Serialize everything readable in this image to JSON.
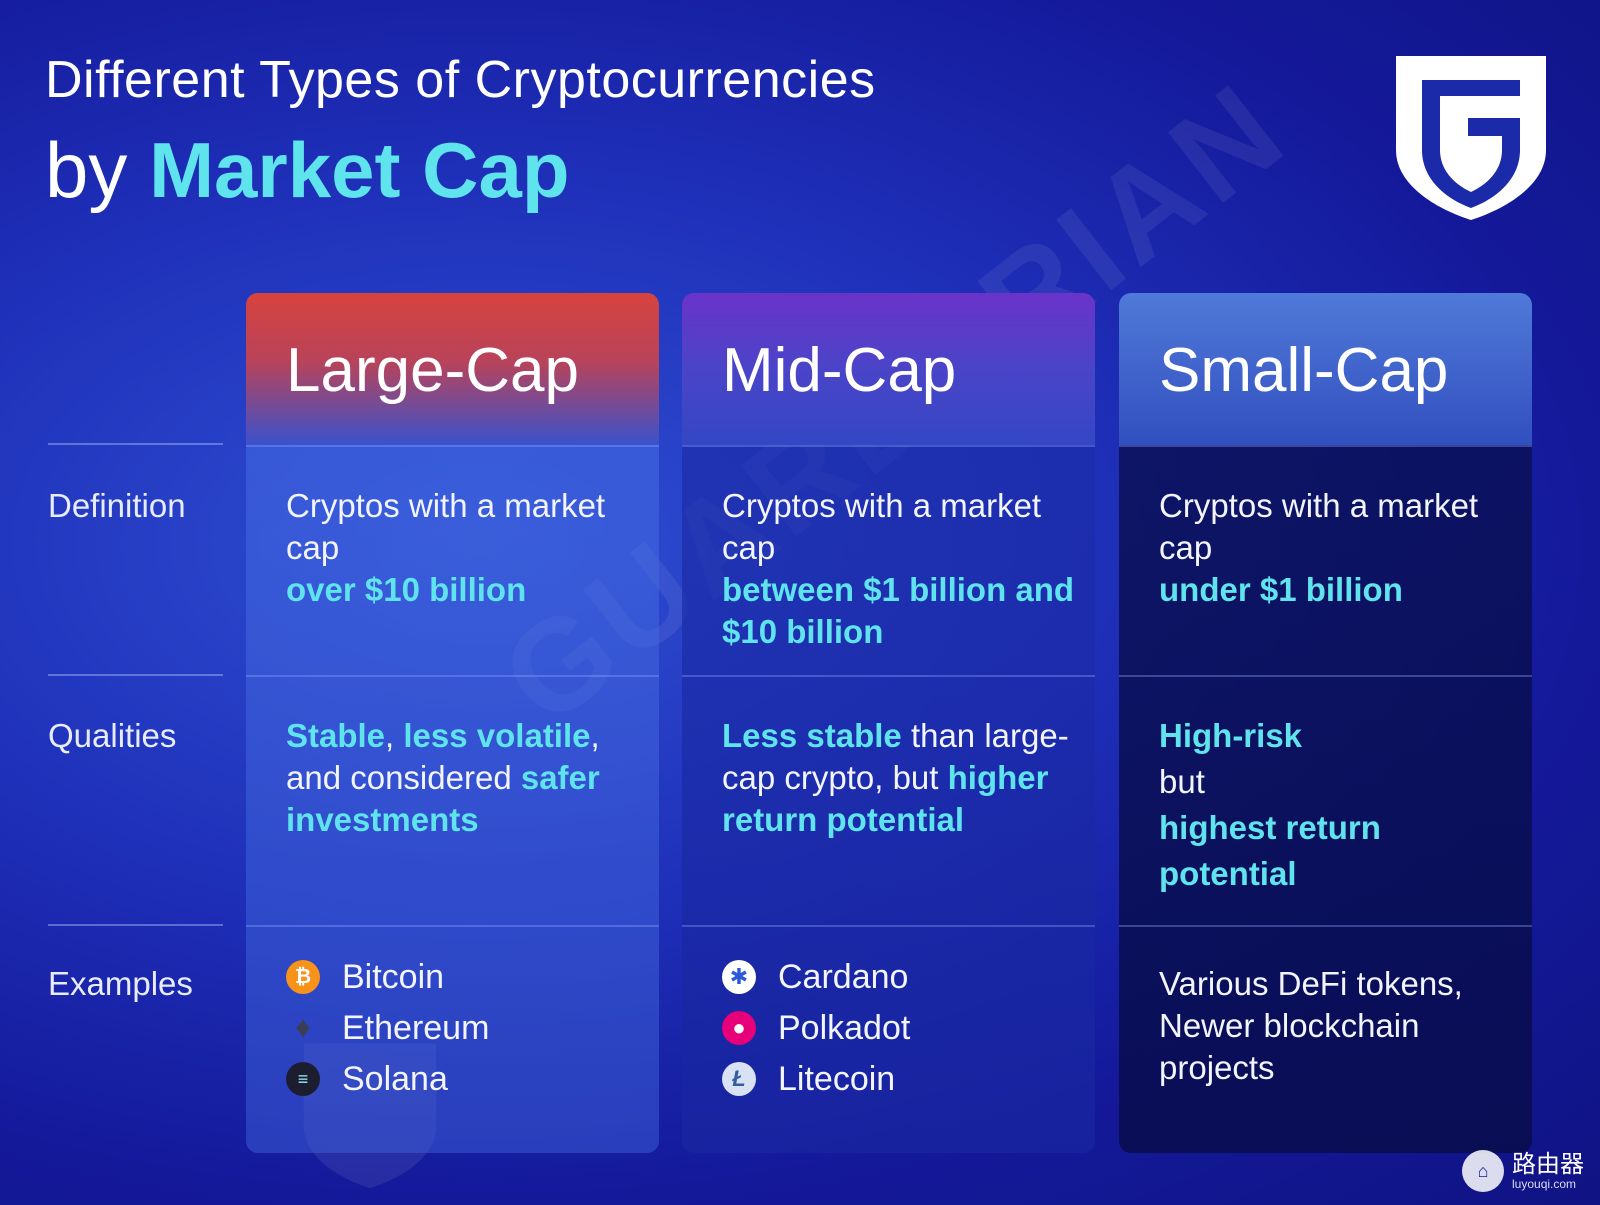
{
  "header": {
    "title_line1": "Different Types of Cryptocurrencies",
    "title_prefix": "by",
    "title_accent": "Market Cap"
  },
  "watermark": "GUARDARIAN",
  "row_labels": {
    "definition": "Definition",
    "qualities": "Qualities",
    "examples": "Examples"
  },
  "columns": {
    "large": {
      "title": "Large-Cap",
      "definition": {
        "text": "Cryptos with a market cap",
        "highlight": "over $10 billion"
      },
      "qualities": {
        "hl1": "Stable",
        "t1": ",",
        "hl2": "less volatile",
        "t2": ", and considered",
        "hl3": "safer investments"
      },
      "examples": [
        {
          "name": "Bitcoin",
          "icon": "bitcoin-icon"
        },
        {
          "name": "Ethereum",
          "icon": "ethereum-icon"
        },
        {
          "name": "Solana",
          "icon": "solana-icon"
        }
      ]
    },
    "mid": {
      "title": "Mid-Cap",
      "definition": {
        "text": "Cryptos with a market cap",
        "highlight": "between $1 billion and $10 billion"
      },
      "qualities": {
        "hl1": "Less stable",
        "t1": "than large-cap crypto, but",
        "hl2": "higher return potential"
      },
      "examples": [
        {
          "name": "Cardano",
          "icon": "cardano-icon"
        },
        {
          "name": "Polkadot",
          "icon": "polkadot-icon"
        },
        {
          "name": "Litecoin",
          "icon": "litecoin-icon"
        }
      ]
    },
    "small": {
      "title": "Small-Cap",
      "definition": {
        "text": "Cryptos with a market cap",
        "highlight": "under $1 billion"
      },
      "qualities": {
        "hl1": "High-risk",
        "t1": "but",
        "hl2": "highest return potential"
      },
      "examples_text": "Various DeFi tokens, Newer blockchain projects"
    }
  },
  "footer": {
    "brand_cn": "路由器",
    "brand_url": "luyouqi.com"
  },
  "colors": {
    "accent": "#5fe3ec",
    "large_head": "#d7433e",
    "mid_head": "#6a33c9",
    "small_head": "#4f7ad9"
  }
}
